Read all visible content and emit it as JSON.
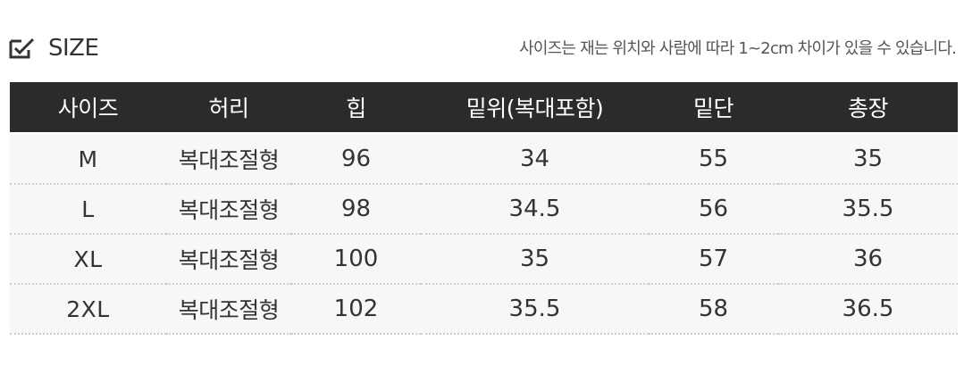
{
  "header": {
    "icon": "checkbox-edit-icon",
    "title": "SIZE",
    "note": "사이즈는 재는 위치와 사람에 따라 1~2cm 차이가 있을 수 있습니다."
  },
  "table": {
    "columns": [
      "사이즈",
      "허리",
      "힙",
      "밑위(복대포함)",
      "밑단",
      "총장"
    ],
    "rows": [
      [
        "M",
        "복대조절형",
        "96",
        "34",
        "55",
        "35"
      ],
      [
        "L",
        "복대조절형",
        "98",
        "34.5",
        "56",
        "35.5"
      ],
      [
        "XL",
        "복대조절형",
        "100",
        "35",
        "57",
        "36"
      ],
      [
        "2XL",
        "복대조절형",
        "102",
        "35.5",
        "58",
        "36.5"
      ]
    ]
  },
  "colors": {
    "header_bg": "#2b2b2b",
    "header_text": "#ffffff",
    "row_bg": "#f8f7f7",
    "divider": "#cfcfcf"
  }
}
